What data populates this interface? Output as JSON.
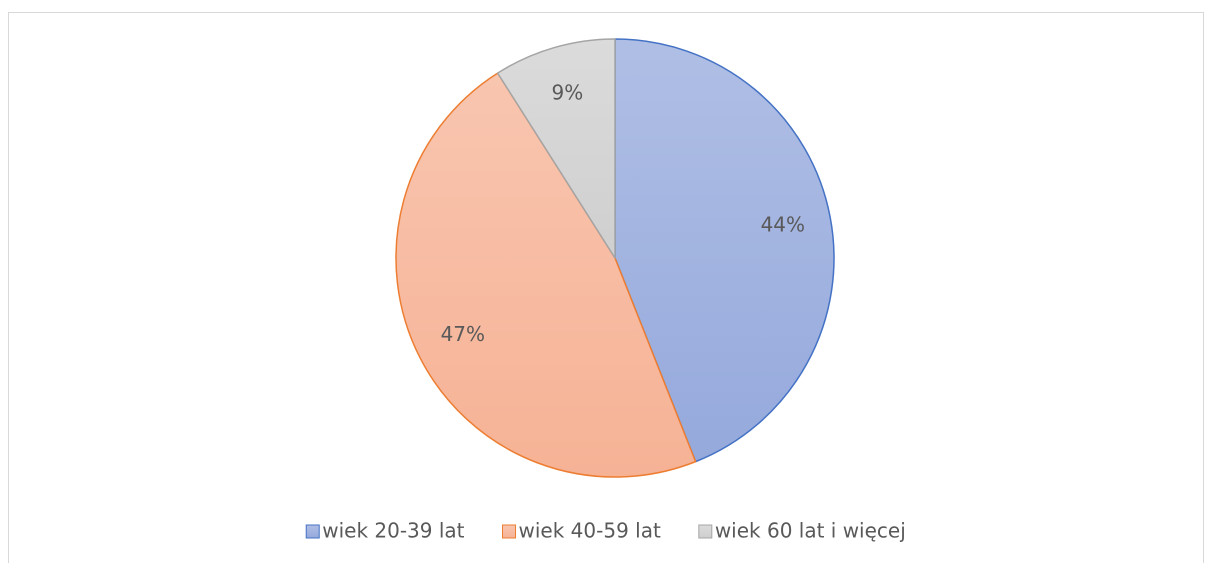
{
  "chart_data": {
    "type": "pie",
    "categories": [
      "wiek 20-39 lat",
      "wiek 40-59 lat",
      "wiek 60 lat i więcej"
    ],
    "values": [
      44,
      47,
      9
    ],
    "value_labels": [
      "44%",
      "47%",
      "9%"
    ],
    "colors": [
      "#95a9dc",
      "#f6b295",
      "#cfcfcf"
    ],
    "edge_colors": [
      "#4472c4",
      "#ed7d31",
      "#a5a5a5"
    ],
    "legend": "bottom"
  }
}
